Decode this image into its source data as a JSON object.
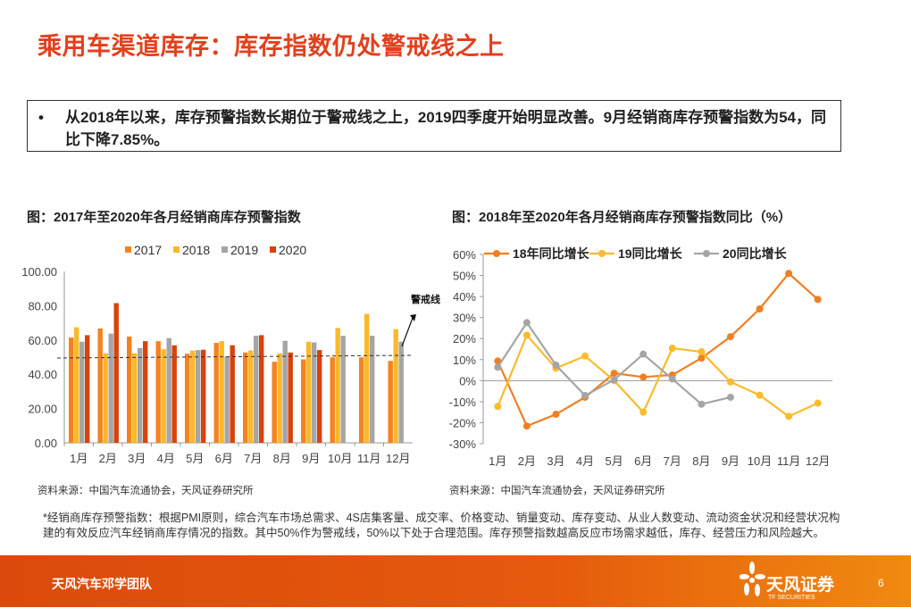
{
  "title": "乘用车渠道库存：库存指数仍处警戒线之上",
  "summary": {
    "bullet": "•",
    "text": "从2018年以来，库存预警指数长期位于警戒线之上，2019四季度开始明显改善。9月经销商库存预警指数为54，同比下降7.85%。"
  },
  "left_caption": "图：2017年至2020年各月经销商库存预警指数",
  "right_caption": "图：2018年至2020年各月经销商库存预警指数同比（%）",
  "left_source": "资料来源：中国汽车流通协会，天风证券研究所",
  "right_source": "资料来源：中国汽车流通协会，天风证券研究所",
  "note": "*经销商库存预警指数：根据PMI原则，综合汽车市场总需求、4S店集客量、成交率、价格变动、销量变动、库存变动、从业人数变动、流动资金状况和经营状况构建的有效反应汽车经销商库存情况的指数。其中50%作为警戒线，50%以下处于合理范围。库存预警指数越高反应市场需求越低，库存、经营压力和风险越大。",
  "footer": {
    "team": "天风汽车邓学团队",
    "logo_cn": "天风证券",
    "logo_en": "TF SECURITIES",
    "page": "6"
  },
  "chart_data": [
    {
      "type": "bar",
      "categories": [
        "1月",
        "2月",
        "3月",
        "4月",
        "5月",
        "6月",
        "7月",
        "8月",
        "9月",
        "10月",
        "11月",
        "12月"
      ],
      "series": [
        {
          "name": "2017",
          "color": "#f5821f",
          "values": [
            61.4,
            66.7,
            62.0,
            59.3,
            52.0,
            58.3,
            52.7,
            47.3,
            48.7,
            49.9,
            49.9,
            47.8
          ]
        },
        {
          "name": "2018",
          "color": "#fbb829",
          "values": [
            67.4,
            52.2,
            52.2,
            54.6,
            53.8,
            59.3,
            53.9,
            52.2,
            59.0,
            67.0,
            75.2,
            66.3
          ]
        },
        {
          "name": "2019",
          "color": "#a5a5a5",
          "values": [
            59.0,
            63.7,
            55.3,
            61.1,
            54.1,
            50.4,
            62.5,
            59.5,
            58.6,
            62.5,
            62.5,
            59.0
          ]
        },
        {
          "name": "2020",
          "color": "#d9420b",
          "values": [
            62.8,
            81.5,
            59.3,
            56.9,
            54.3,
            56.9,
            62.8,
            52.7,
            54.1,
            null,
            null,
            null
          ]
        }
      ],
      "yticks": [
        "0.00",
        "20.00",
        "40.00",
        "60.00",
        "80.00",
        "100.00"
      ],
      "ylim": [
        0,
        100
      ],
      "reference_line": {
        "value": 50,
        "label": "警戒线"
      },
      "legend": "top"
    },
    {
      "type": "line",
      "categories": [
        "1月",
        "2月",
        "3月",
        "4月",
        "5月",
        "6月",
        "7月",
        "8月",
        "9月",
        "10月",
        "11月",
        "12月"
      ],
      "series": [
        {
          "name": "18年同比增长",
          "color": "#f07f22",
          "values": [
            9.3,
            -21.6,
            -16.0,
            -7.9,
            3.5,
            1.7,
            2.7,
            10.7,
            20.9,
            34.1,
            51.0,
            38.6
          ]
        },
        {
          "name": "19同比增长",
          "color": "#fbbb2b",
          "values": [
            -12.3,
            21.6,
            5.9,
            11.7,
            0.0,
            -15.0,
            15.4,
            13.7,
            -0.6,
            -6.9,
            -17.0,
            -10.7
          ]
        },
        {
          "name": "20同比增长",
          "color": "#a5a5a5",
          "values": [
            6.4,
            27.6,
            7.4,
            -7.1,
            0.4,
            12.6,
            0.8,
            -11.2,
            -7.9,
            null,
            null,
            null
          ]
        }
      ],
      "yticks": [
        "-30%",
        "-20%",
        "-10%",
        "0%",
        "10%",
        "20%",
        "30%",
        "40%",
        "50%",
        "60%"
      ],
      "ylim": [
        -30,
        60
      ],
      "legend": "top"
    }
  ]
}
